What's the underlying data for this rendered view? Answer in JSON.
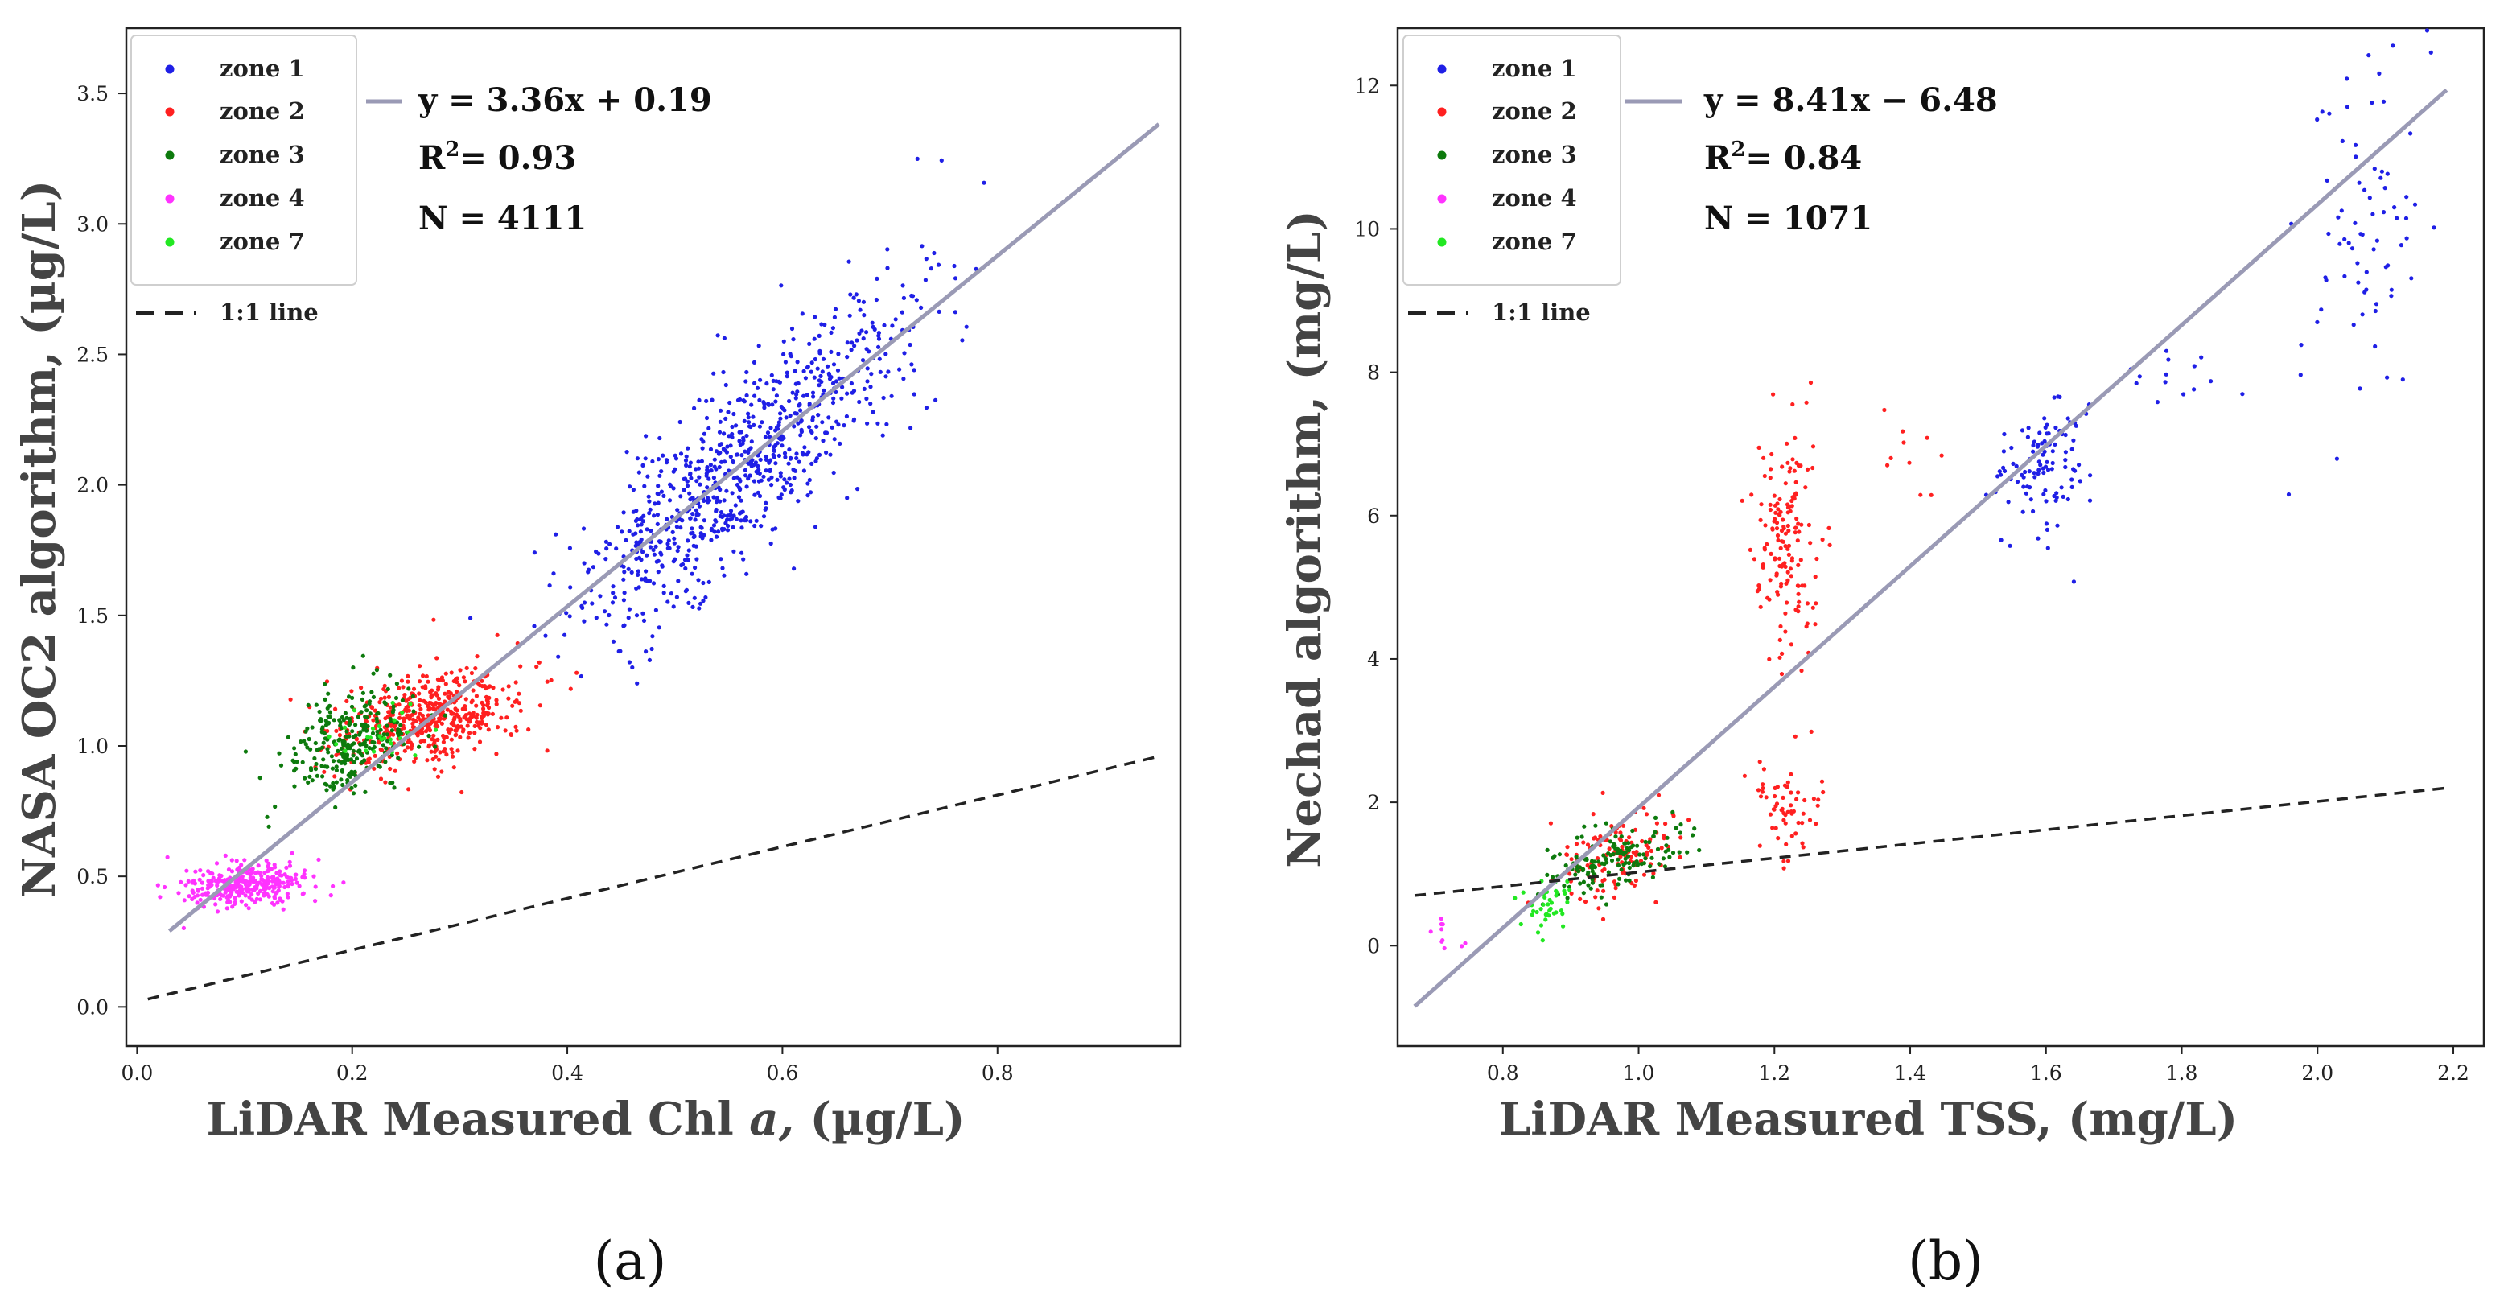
{
  "chart_data": [
    {
      "type": "scatter",
      "panel_label": "(a)",
      "xlabel_main": "LiDAR Measured Chl ",
      "xlabel_italic": "a,",
      "xlabel_unit": " (µg/L)",
      "ylabel": "NASA OC2 algorithm, (µg/L)",
      "xlim": [
        -0.01,
        0.97
      ],
      "ylim": [
        -0.15,
        3.75
      ],
      "xticks": [
        0.0,
        0.2,
        0.4,
        0.6,
        0.8
      ],
      "xtick_labels": [
        "0.0",
        "0.2",
        "0.4",
        "0.6",
        "0.8"
      ],
      "yticks": [
        0.0,
        0.5,
        1.0,
        1.5,
        2.0,
        2.5,
        3.0,
        3.5
      ],
      "ytick_labels": [
        "0.0",
        "0.5",
        "1.0",
        "1.5",
        "2.0",
        "2.5",
        "3.0",
        "3.5"
      ],
      "legend": [
        {
          "label": "zone 1",
          "color": "#1f1fe6"
        },
        {
          "label": "zone 2",
          "color": "#ff2020"
        },
        {
          "label": "zone 3",
          "color": "#0d7a0d"
        },
        {
          "label": "zone 4",
          "color": "#ff33ff"
        },
        {
          "label": "zone 7",
          "color": "#22e822"
        }
      ],
      "one_to_one_label": "1:1 line",
      "fit": {
        "slope": 3.36,
        "intercept": 0.19,
        "x_range": [
          0.03,
          0.95
        ],
        "color": "#9a9ab5"
      },
      "dashed_line": {
        "x": [
          0.01,
          0.95
        ],
        "y": [
          0.03,
          0.96
        ],
        "color": "#222222"
      },
      "equation": "y = 3.36x + 0.19",
      "r2_prefix": "R",
      "r2_sup": "2",
      "r2_value": "= 0.93",
      "n_label": "N = 4111",
      "point_groups": [
        {
          "zone": "zone 1",
          "color": "#1f1fe6",
          "count": 750,
          "x_center": 0.57,
          "x_spread": 0.075,
          "slope": 3.36,
          "intercept": 0.19,
          "y_noise": 0.18,
          "seed": 11
        },
        {
          "zone": "zone 1",
          "color": "#1f1fe6",
          "count": 90,
          "x_center": 0.49,
          "x_spread": 0.045,
          "slope": 3.36,
          "intercept": 0.19,
          "y_noise": 0.15,
          "seed": 12
        },
        {
          "zone": "zone 2",
          "color": "#ff2020",
          "count": 520,
          "x_center": 0.27,
          "x_spread": 0.045,
          "slope": 0.9,
          "intercept": 0.86,
          "y_noise": 0.09,
          "seed": 21
        },
        {
          "zone": "zone 3",
          "color": "#0d7a0d",
          "count": 280,
          "x_center": 0.2,
          "x_spread": 0.03,
          "slope": 1.2,
          "intercept": 0.78,
          "y_noise": 0.1,
          "seed": 31
        },
        {
          "zone": "zone 7",
          "color": "#22e822",
          "count": 25,
          "x_center": 0.22,
          "x_spread": 0.025,
          "slope": 1.0,
          "intercept": 0.83,
          "y_noise": 0.07,
          "seed": 71
        },
        {
          "zone": "zone 4",
          "color": "#ff33ff",
          "count": 320,
          "x_center": 0.1,
          "x_spread": 0.028,
          "slope": 0.3,
          "intercept": 0.44,
          "y_noise": 0.045,
          "seed": 41
        }
      ]
    },
    {
      "type": "scatter",
      "panel_label": "(b)",
      "xlabel": "LiDAR Measured TSS, (mg/L)",
      "ylabel": "Nechad algorithm, (mg/L)",
      "xlim": [
        0.645,
        2.245
      ],
      "ylim": [
        -1.4,
        12.8
      ],
      "xticks": [
        0.8,
        1.0,
        1.2,
        1.4,
        1.6,
        1.8,
        2.0,
        2.2
      ],
      "xtick_labels": [
        "0.8",
        "1.0",
        "1.2",
        "1.4",
        "1.6",
        "1.8",
        "2.0",
        "2.2"
      ],
      "yticks": [
        0,
        2,
        4,
        6,
        8,
        10,
        12
      ],
      "ytick_labels": [
        "0",
        "2",
        "4",
        "6",
        "8",
        "10",
        "12"
      ],
      "legend": [
        {
          "label": "zone 1",
          "color": "#1f1fe6"
        },
        {
          "label": "zone 2",
          "color": "#ff2020"
        },
        {
          "label": "zone 3",
          "color": "#0d7a0d"
        },
        {
          "label": "zone 4",
          "color": "#ff33ff"
        },
        {
          "label": "zone 7",
          "color": "#22e822"
        }
      ],
      "one_to_one_label": "1:1 line",
      "fit": {
        "slope": 8.41,
        "intercept": -6.48,
        "x_range": [
          0.67,
          2.19
        ],
        "color": "#9a9ab5"
      },
      "dashed_line": {
        "x": [
          0.67,
          2.19
        ],
        "y": [
          0.7,
          2.2
        ],
        "color": "#222222"
      },
      "equation": "y = 8.41x − 6.48",
      "r2_prefix": "R",
      "r2_sup": "2",
      "r2_value": "= 0.84",
      "n_label": "N = 1071",
      "point_groups": [
        {
          "zone": "zone 1",
          "color": "#1f1fe6",
          "count": 110,
          "x_center": 1.6,
          "x_spread": 0.04,
          "slope": 5.0,
          "intercept": -1.25,
          "y_noise": 0.45,
          "seed": 111
        },
        {
          "zone": "zone 1",
          "color": "#1f1fe6",
          "count": 14,
          "x_center": 1.8,
          "x_spread": 0.05,
          "slope": 1.0,
          "intercept": 6.2,
          "y_noise": 0.25,
          "seed": 112
        },
        {
          "zone": "zone 1",
          "color": "#1f1fe6",
          "count": 75,
          "x_center": 2.07,
          "x_spread": 0.05,
          "slope": 6.0,
          "intercept": -2.3,
          "y_noise": 1.2,
          "seed": 113
        },
        {
          "zone": "zone 2",
          "color": "#ff2020",
          "count": 160,
          "x_center": 1.22,
          "x_spread": 0.025,
          "slope": 0.0,
          "intercept": 5.8,
          "y_noise": 0.95,
          "seed": 121
        },
        {
          "zone": "zone 2",
          "color": "#ff2020",
          "count": 60,
          "x_center": 1.22,
          "x_spread": 0.025,
          "slope": 0.0,
          "intercept": 1.9,
          "y_noise": 0.35,
          "seed": 122
        },
        {
          "zone": "zone 2",
          "color": "#ff2020",
          "count": 130,
          "x_center": 0.97,
          "x_spread": 0.05,
          "slope": 2.0,
          "intercept": -0.7,
          "y_noise": 0.3,
          "seed": 123
        },
        {
          "zone": "zone 2",
          "color": "#ff2020",
          "count": 10,
          "x_center": 1.4,
          "x_spread": 0.03,
          "slope": 0.0,
          "intercept": 7.0,
          "y_noise": 0.35,
          "seed": 124
        },
        {
          "zone": "zone 3",
          "color": "#0d7a0d",
          "count": 150,
          "x_center": 0.96,
          "x_spread": 0.05,
          "slope": 2.5,
          "intercept": -1.2,
          "y_noise": 0.22,
          "seed": 131
        },
        {
          "zone": "zone 7",
          "color": "#22e822",
          "count": 40,
          "x_center": 0.87,
          "x_spread": 0.02,
          "slope": 1.0,
          "intercept": -0.25,
          "y_noise": 0.17,
          "seed": 171
        },
        {
          "zone": "zone 4",
          "color": "#ff33ff",
          "count": 10,
          "x_center": 0.71,
          "x_spread": 0.012,
          "slope": 0.0,
          "intercept": 0.2,
          "y_noise": 0.15,
          "seed": 141
        }
      ]
    }
  ]
}
